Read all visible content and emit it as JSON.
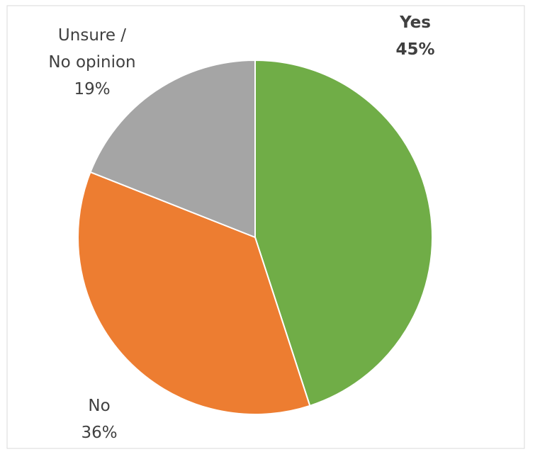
{
  "chart_data": {
    "type": "pie",
    "categories": [
      "Yes",
      "No",
      "Unsure /\nNo opinion"
    ],
    "values": [
      45,
      36,
      19
    ],
    "value_labels": [
      "45%",
      "36%",
      "19%"
    ],
    "colors": [
      "#70ad47",
      "#ed7d31",
      "#a5a5a5"
    ]
  }
}
